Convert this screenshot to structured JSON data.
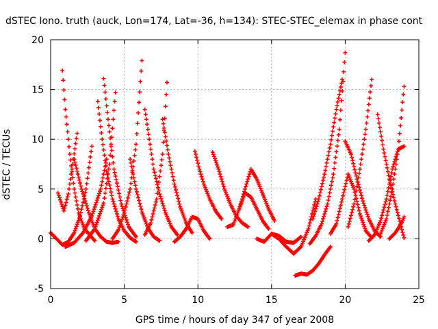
{
  "chart_data": {
    "type": "scatter",
    "title": "dSTEC Iono. truth (auck, Lon=174, Lat=-36, h=134): STEC-STEC_elemax in phase cont",
    "xlabel": "GPS time / hours of day 347 of year 2008",
    "ylabel": "dSTEC  / TECUs",
    "xlim": [
      0,
      25
    ],
    "ylim": [
      -5,
      20
    ],
    "xticks": [
      0,
      5,
      10,
      15,
      20,
      25
    ],
    "yticks": [
      -5,
      0,
      5,
      10,
      15,
      20
    ],
    "grid": true,
    "marker": "+",
    "color": "#ff0000",
    "series": [
      {
        "x": [
          0.0,
          0.4,
          0.8,
          1.2,
          1.6,
          2.0,
          2.4,
          2.8
        ],
        "y": [
          0.6,
          0.0,
          -0.6,
          -0.3,
          0.6,
          2.3,
          5.0,
          9.3
        ]
      },
      {
        "x": [
          0.8,
          1.0,
          1.3,
          1.6,
          1.9,
          2.3,
          2.7,
          3.0
        ],
        "y": [
          16.9,
          13.0,
          8.5,
          5.0,
          2.6,
          1.0,
          0.3,
          -0.2
        ]
      },
      {
        "x": [
          0.5,
          0.9,
          1.2,
          1.5,
          1.8
        ],
        "y": [
          4.6,
          2.8,
          4.5,
          7.5,
          10.6
        ]
      },
      {
        "x": [
          1.6,
          2.1,
          2.6,
          3.0,
          3.4,
          3.8,
          4.2,
          4.6
        ],
        "y": [
          8.0,
          5.0,
          2.6,
          1.0,
          0.2,
          -0.3,
          -0.4,
          -0.3
        ]
      },
      {
        "x": [
          1.0,
          1.6,
          2.2,
          2.8,
          3.4,
          3.8
        ],
        "y": [
          -0.8,
          -0.4,
          0.6,
          2.3,
          5.0,
          8.0
        ]
      },
      {
        "x": [
          3.2,
          3.5,
          3.8,
          4.2,
          4.6,
          5.0,
          5.4,
          5.8
        ],
        "y": [
          13.8,
          10.0,
          6.8,
          4.0,
          2.0,
          0.8,
          0.1,
          -0.3
        ]
      },
      {
        "x": [
          2.4,
          3.0,
          3.6,
          4.0,
          4.4
        ],
        "y": [
          -0.2,
          1.0,
          3.6,
          7.5,
          14.7
        ]
      },
      {
        "x": [
          3.6,
          3.9,
          4.3,
          4.8,
          5.3,
          5.8
        ],
        "y": [
          16.1,
          12.0,
          7.0,
          3.5,
          1.2,
          0.2
        ]
      },
      {
        "x": [
          4.2,
          4.6,
          5.0,
          5.4,
          5.8,
          6.2
        ],
        "y": [
          0.0,
          0.9,
          2.6,
          5.0,
          9.5,
          17.9
        ]
      },
      {
        "x": [
          5.4,
          5.8,
          6.2,
          6.6,
          7.0,
          7.4
        ],
        "y": [
          8.0,
          5.0,
          2.7,
          1.1,
          0.2,
          -0.2
        ]
      },
      {
        "x": [
          6.4,
          6.7,
          7.0,
          7.4,
          7.8,
          8.2,
          8.6
        ],
        "y": [
          13.0,
          10.0,
          7.0,
          4.5,
          2.6,
          1.2,
          0.4
        ]
      },
      {
        "x": [
          6.4,
          6.8,
          7.2,
          7.6,
          7.9
        ],
        "y": [
          0.4,
          1.6,
          4.0,
          8.5,
          15.7
        ]
      },
      {
        "x": [
          7.6,
          8.0,
          8.4,
          8.8,
          9.2,
          9.6
        ],
        "y": [
          12.0,
          8.5,
          5.5,
          3.2,
          1.6,
          0.6
        ]
      },
      {
        "x": [
          8.4,
          8.8,
          9.2,
          9.6,
          10.0,
          10.4,
          10.8
        ],
        "y": [
          -0.3,
          0.2,
          1.0,
          2.2,
          2.0,
          0.8,
          0.0
        ]
      },
      {
        "x": [
          9.8,
          10.1,
          10.4,
          10.8,
          11.2,
          11.6
        ],
        "y": [
          8.8,
          7.0,
          5.5,
          4.0,
          2.8,
          2.0
        ]
      },
      {
        "x": [
          11.0,
          11.4,
          11.8,
          12.2,
          12.6,
          13.0,
          13.4
        ],
        "y": [
          8.7,
          7.0,
          5.0,
          3.5,
          2.3,
          1.6,
          1.2
        ]
      },
      {
        "x": [
          12.0,
          12.4,
          12.8,
          13.2,
          13.6,
          14.0,
          14.4,
          14.8
        ],
        "y": [
          1.2,
          1.4,
          3.0,
          4.6,
          4.2,
          3.0,
          1.8,
          1.0
        ]
      },
      {
        "x": [
          12.8,
          13.2,
          13.6,
          14.0,
          14.4,
          14.8,
          15.2
        ],
        "y": [
          3.0,
          5.0,
          7.0,
          6.0,
          4.5,
          3.0,
          1.8
        ]
      },
      {
        "x": [
          14.0,
          14.5,
          15.0,
          15.5,
          16.0,
          16.5,
          17.0
        ],
        "y": [
          0.0,
          -0.3,
          0.5,
          0.3,
          -0.3,
          -0.4,
          0.2
        ]
      },
      {
        "x": [
          15.0,
          15.5,
          16.0,
          16.5,
          17.0,
          17.5,
          18.0
        ],
        "y": [
          0.5,
          0.0,
          -0.8,
          -1.5,
          -0.8,
          1.0,
          4.0
        ]
      },
      {
        "x": [
          16.6,
          17.0,
          17.4,
          17.8,
          18.2,
          18.6,
          19.0
        ],
        "y": [
          -3.7,
          -3.5,
          -3.6,
          -3.2,
          -2.5,
          -1.6,
          -0.8
        ]
      },
      {
        "x": [
          17.6,
          18.0,
          18.4,
          18.8,
          19.2,
          19.6,
          20.0
        ],
        "y": [
          -0.5,
          0.3,
          1.5,
          3.5,
          6.5,
          11.0,
          18.7
        ]
      },
      {
        "x": [
          17.8,
          18.2,
          18.6,
          19.0,
          19.4,
          19.8
        ],
        "y": [
          2.0,
          4.0,
          6.5,
          9.5,
          13.0,
          16.0
        ]
      },
      {
        "x": [
          19.0,
          19.4,
          19.8,
          20.2,
          20.6,
          21.0,
          21.4,
          21.8
        ],
        "y": [
          0.5,
          1.5,
          4.0,
          6.5,
          5.0,
          2.5,
          0.8,
          0.1
        ]
      },
      {
        "x": [
          20.0,
          20.4,
          20.8,
          21.2,
          21.6,
          22.0,
          22.4
        ],
        "y": [
          9.8,
          8.5,
          6.0,
          3.8,
          2.0,
          0.8,
          0.2
        ]
      },
      {
        "x": [
          20.2,
          20.6,
          21.0,
          21.4,
          21.8
        ],
        "y": [
          1.2,
          3.5,
          7.0,
          11.0,
          16.0
        ]
      },
      {
        "x": [
          21.6,
          22.0,
          22.4,
          22.8,
          23.2,
          23.6,
          24.0
        ],
        "y": [
          -0.2,
          0.4,
          1.8,
          4.0,
          7.0,
          9.0,
          9.3
        ]
      },
      {
        "x": [
          22.2,
          22.6,
          23.0,
          23.4,
          23.8,
          24.0
        ],
        "y": [
          12.5,
          9.0,
          6.0,
          3.5,
          1.2,
          0.1
        ]
      },
      {
        "x": [
          22.4,
          22.8,
          23.2,
          23.6,
          24.0
        ],
        "y": [
          0.5,
          2.0,
          5.0,
          9.0,
          15.3
        ]
      },
      {
        "x": [
          23.0,
          23.4,
          23.8,
          24.0
        ],
        "y": [
          0.0,
          0.6,
          1.5,
          2.2
        ]
      }
    ]
  }
}
